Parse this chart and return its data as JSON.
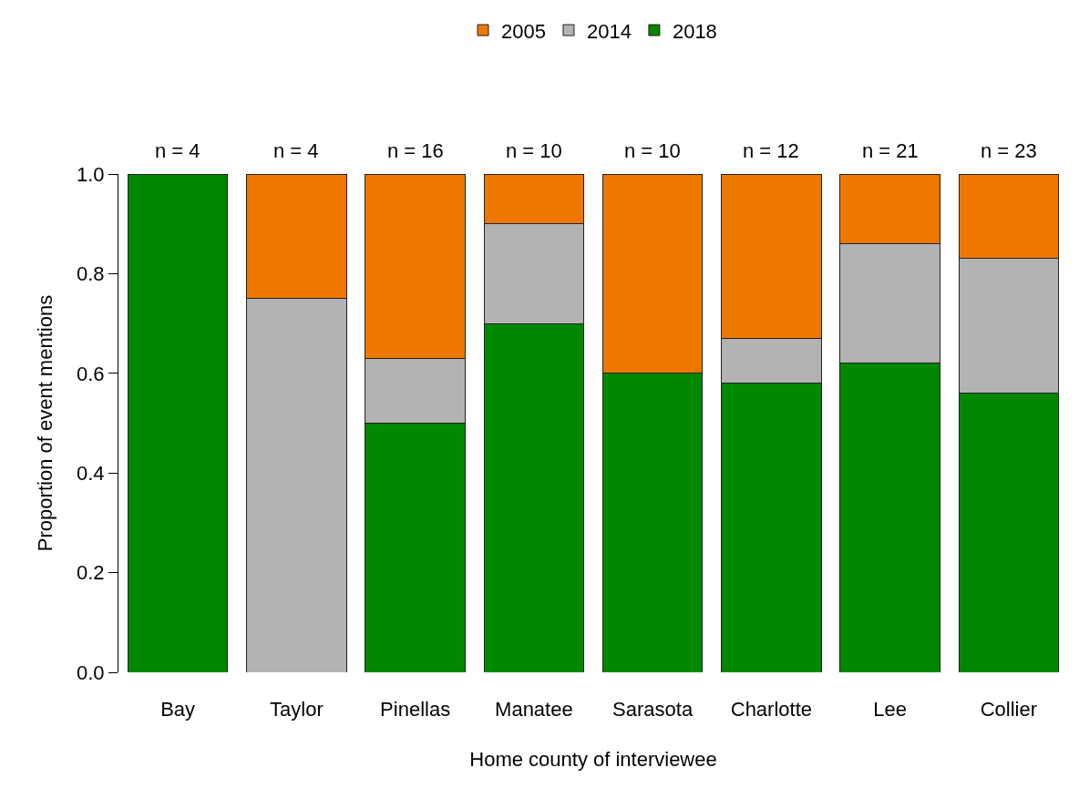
{
  "chart_data": {
    "type": "bar",
    "stacked": true,
    "xlabel": "Home county of interviewee",
    "ylabel": "Proportion of event mentions",
    "categories": [
      "Bay",
      "Taylor",
      "Pinellas",
      "Manatee",
      "Sarasota",
      "Charlotte",
      "Lee",
      "Collier"
    ],
    "series": [
      {
        "name": "2018",
        "color": "#008800",
        "values": [
          1.0,
          null,
          0.5,
          0.7,
          0.6,
          0.58,
          0.62,
          0.56
        ]
      },
      {
        "name": "2014",
        "color": "#b3b3b3",
        "values": [
          null,
          0.75,
          0.13,
          0.2,
          null,
          0.09,
          0.24,
          0.27
        ]
      },
      {
        "name": "2005",
        "color": "#ee7700",
        "values": [
          null,
          0.25,
          0.37,
          0.1,
          0.4,
          0.33,
          0.14,
          0.17
        ]
      }
    ],
    "ylim": [
      0,
      1.0
    ],
    "yticks": [
      {
        "value": 0,
        "label": "0.0"
      },
      {
        "value": 0.2,
        "label": "0.2"
      },
      {
        "value": 0.4,
        "label": "0.4"
      },
      {
        "value": 0.6,
        "label": "0.6"
      },
      {
        "value": 0.8,
        "label": "0.8"
      },
      {
        "value": 1.0,
        "label": "1.0"
      }
    ],
    "grid": false,
    "legend": "top",
    "annotations": [
      "n = 4",
      "n = 4",
      "n = 16",
      "n = 10",
      "n = 10",
      "n = 12",
      "n = 21",
      "n = 23"
    ]
  }
}
